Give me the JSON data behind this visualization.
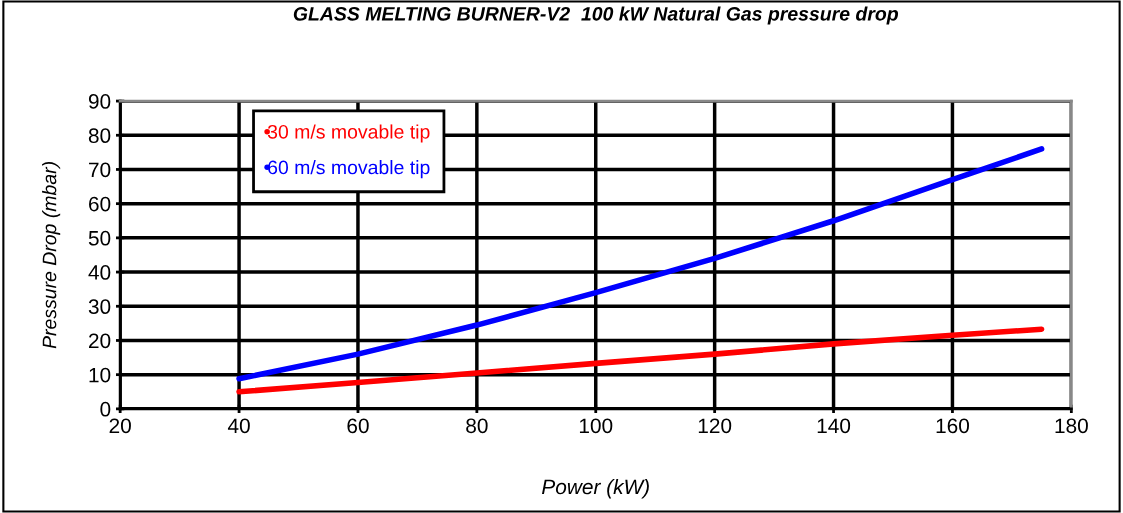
{
  "chart_data": {
    "type": "line",
    "title": "GLASS MELTING BURNER-V2  100 kW Natural Gas pressure drop",
    "xlabel": "Power (kW)",
    "ylabel": "Pressure Drop (mbar)",
    "x": [
      40,
      60,
      80,
      100,
      120,
      140,
      160,
      175
    ],
    "series": [
      {
        "name": "30 m/s movable tip",
        "color": "#ff0000",
        "values": [
          5,
          7.7,
          10.5,
          13.3,
          16,
          19,
          21.5,
          23.3
        ]
      },
      {
        "name": "60 m/s movable tip",
        "color": "#0000ff",
        "values": [
          8.8,
          16,
          24.5,
          34,
          44,
          55,
          67,
          76
        ]
      }
    ],
    "xlim": [
      20,
      180
    ],
    "xticks": [
      20,
      40,
      60,
      80,
      100,
      120,
      140,
      160,
      180
    ],
    "ylim": [
      0,
      90
    ],
    "yticks": [
      0,
      10,
      20,
      30,
      40,
      50,
      60,
      70,
      80,
      90
    ],
    "grid": true,
    "legend": "top left",
    "marker": "none",
    "line_style": "solid"
  }
}
